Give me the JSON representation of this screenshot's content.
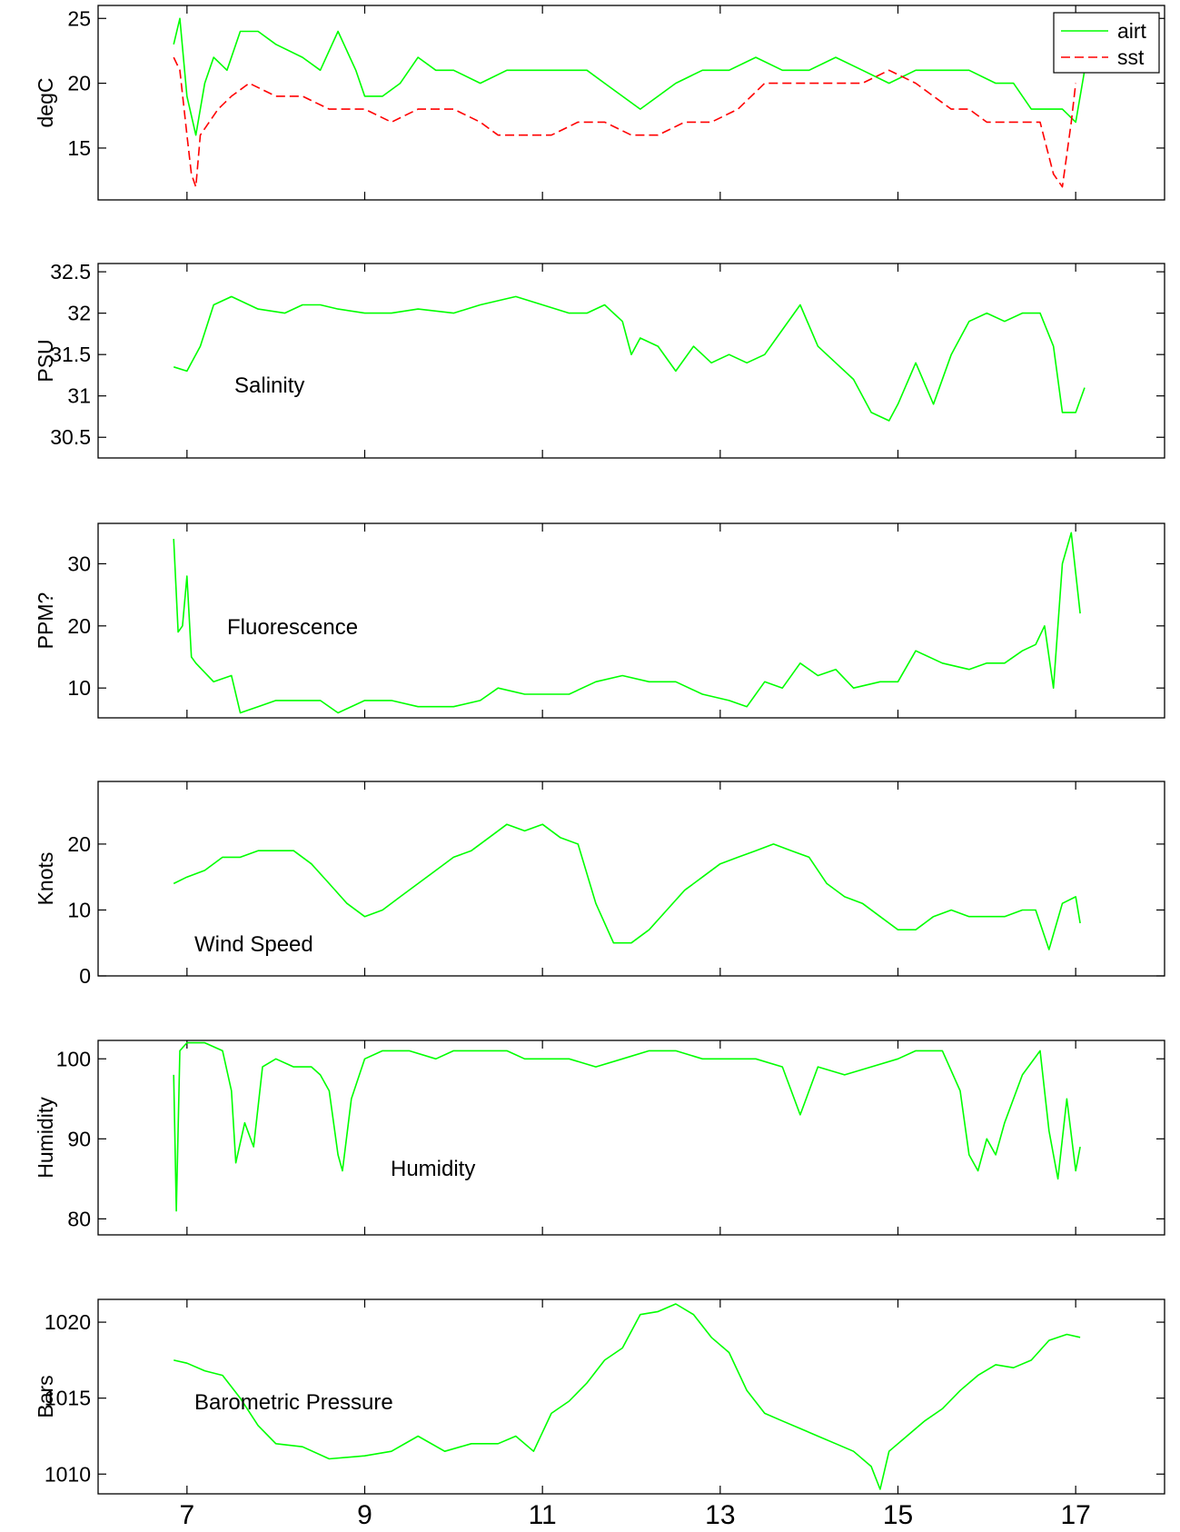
{
  "figure": {
    "x_tick_labels": [
      "7",
      "9",
      "11",
      "13",
      "15",
      "17"
    ]
  },
  "chart_data": [
    {
      "type": "line",
      "ylabel": "degC",
      "xlim": [
        6.0,
        18.0
      ],
      "ylim": [
        11,
        26
      ],
      "yticks": [
        15,
        20,
        25
      ],
      "ytick_labels": [
        "15",
        "20",
        "25"
      ],
      "legend": {
        "position": "top-right",
        "entries": [
          "airt",
          "sst"
        ]
      },
      "series": [
        {
          "name": "airt",
          "color": "#00ff00",
          "style": "solid",
          "x": [
            6.85,
            6.92,
            7.0,
            7.1,
            7.2,
            7.3,
            7.45,
            7.6,
            7.8,
            8.0,
            8.3,
            8.5,
            8.7,
            8.9,
            9.0,
            9.2,
            9.4,
            9.6,
            9.8,
            10.0,
            10.3,
            10.6,
            10.9,
            11.2,
            11.5,
            11.7,
            11.9,
            12.1,
            12.3,
            12.5,
            12.8,
            13.1,
            13.4,
            13.7,
            14.0,
            14.3,
            14.6,
            14.9,
            15.2,
            15.5,
            15.8,
            16.1,
            16.3,
            16.5,
            16.7,
            16.85,
            17.0,
            17.1
          ],
          "y": [
            23,
            25,
            19,
            16,
            20,
            22,
            21,
            24,
            24,
            23,
            22,
            21,
            24,
            21,
            19,
            19,
            20,
            22,
            21,
            21,
            20,
            21,
            21,
            21,
            21,
            20,
            19,
            18,
            19,
            20,
            21,
            21,
            22,
            21,
            21,
            22,
            21,
            20,
            21,
            21,
            21,
            20,
            20,
            18,
            18,
            18,
            17,
            21
          ]
        },
        {
          "name": "sst",
          "color": "#ff0000",
          "style": "dashed",
          "x": [
            6.85,
            6.92,
            7.0,
            7.05,
            7.1,
            7.15,
            7.25,
            7.35,
            7.5,
            7.7,
            8.0,
            8.3,
            8.6,
            9.0,
            9.3,
            9.6,
            10.0,
            10.3,
            10.5,
            10.8,
            11.1,
            11.4,
            11.7,
            12.0,
            12.3,
            12.6,
            12.9,
            13.2,
            13.5,
            13.8,
            14.0,
            14.3,
            14.6,
            14.9,
            15.2,
            15.4,
            15.6,
            15.8,
            16.0,
            16.3,
            16.6,
            16.75,
            16.85,
            16.95,
            17.0
          ],
          "y": [
            22,
            21,
            16,
            13,
            12,
            16,
            17,
            18,
            19,
            20,
            19,
            19,
            18,
            18,
            17,
            18,
            18,
            17,
            16,
            16,
            16,
            17,
            17,
            16,
            16,
            17,
            17,
            18,
            20,
            20,
            20,
            20,
            20,
            21,
            20,
            19,
            18,
            18,
            17,
            17,
            17,
            13,
            12,
            17,
            20
          ]
        }
      ],
      "annotation": ""
    },
    {
      "type": "line",
      "ylabel": "PSU",
      "xlim": [
        6.0,
        18.0
      ],
      "ylim": [
        30.25,
        32.6
      ],
      "yticks": [
        30.5,
        31,
        31.5,
        32,
        32.5
      ],
      "ytick_labels": [
        "30.5",
        "31",
        "31.5",
        "32",
        "32.5"
      ],
      "series": [
        {
          "color": "#00ff00",
          "style": "solid",
          "x": [
            6.85,
            7.0,
            7.15,
            7.3,
            7.5,
            7.8,
            8.1,
            8.3,
            8.5,
            8.7,
            9.0,
            9.3,
            9.6,
            10.0,
            10.3,
            10.7,
            11.0,
            11.3,
            11.5,
            11.7,
            11.9,
            12.0,
            12.1,
            12.3,
            12.5,
            12.7,
            12.9,
            13.1,
            13.3,
            13.5,
            13.7,
            13.9,
            14.1,
            14.3,
            14.5,
            14.7,
            14.9,
            15.0,
            15.2,
            15.4,
            15.6,
            15.8,
            16.0,
            16.2,
            16.4,
            16.6,
            16.75,
            16.85,
            17.0,
            17.1
          ],
          "y": [
            31.35,
            31.3,
            31.6,
            32.1,
            32.2,
            32.05,
            32.0,
            32.1,
            32.1,
            32.05,
            32.0,
            32.0,
            32.05,
            32.0,
            32.1,
            32.2,
            32.1,
            32.0,
            32.0,
            32.1,
            31.9,
            31.5,
            31.7,
            31.6,
            31.3,
            31.6,
            31.4,
            31.5,
            31.4,
            31.5,
            31.8,
            32.1,
            31.6,
            31.4,
            31.2,
            30.8,
            30.7,
            30.9,
            31.4,
            30.9,
            31.5,
            31.9,
            32.0,
            31.9,
            32.0,
            32.0,
            31.6,
            30.8,
            30.8,
            31.1
          ]
        }
      ],
      "annotation": "Salinity"
    },
    {
      "type": "line",
      "ylabel": "PPM?",
      "xlim": [
        6.0,
        18.0
      ],
      "ylim": [
        5.2,
        36.5
      ],
      "yticks": [
        10,
        20,
        30
      ],
      "ytick_labels": [
        "10",
        "20",
        "30"
      ],
      "series": [
        {
          "color": "#00ff00",
          "style": "solid",
          "x": [
            6.85,
            6.9,
            6.95,
            7.0,
            7.05,
            7.1,
            7.3,
            7.5,
            7.6,
            7.8,
            8.0,
            8.3,
            8.5,
            8.7,
            9.0,
            9.3,
            9.6,
            10.0,
            10.3,
            10.5,
            10.8,
            11.0,
            11.3,
            11.6,
            11.9,
            12.2,
            12.5,
            12.8,
            13.1,
            13.3,
            13.5,
            13.7,
            13.9,
            14.1,
            14.3,
            14.5,
            14.8,
            15.0,
            15.2,
            15.5,
            15.8,
            16.0,
            16.2,
            16.4,
            16.55,
            16.65,
            16.75,
            16.85,
            16.95,
            17.05
          ],
          "y": [
            34,
            19,
            20,
            28,
            15,
            14,
            11,
            12,
            6,
            7,
            8,
            8,
            8,
            6,
            8,
            8,
            7,
            7,
            8,
            10,
            9,
            9,
            9,
            11,
            12,
            11,
            11,
            9,
            8,
            7,
            11,
            10,
            14,
            12,
            13,
            10,
            11,
            11,
            16,
            14,
            13,
            14,
            14,
            16,
            17,
            20,
            10,
            30,
            35,
            22
          ]
        }
      ],
      "annotation": "Fluorescence"
    },
    {
      "type": "line",
      "ylabel": "Knots",
      "xlim": [
        6.0,
        18.0
      ],
      "ylim": [
        0,
        29.5
      ],
      "yticks": [
        0,
        10,
        20
      ],
      "ytick_labels": [
        "0",
        "10",
        "20"
      ],
      "series": [
        {
          "color": "#00ff00",
          "style": "solid",
          "x": [
            6.85,
            7.0,
            7.2,
            7.4,
            7.6,
            7.8,
            8.0,
            8.2,
            8.4,
            8.6,
            8.8,
            9.0,
            9.2,
            9.4,
            9.6,
            9.8,
            10.0,
            10.2,
            10.4,
            10.6,
            10.8,
            11.0,
            11.2,
            11.4,
            11.6,
            11.8,
            12.0,
            12.2,
            12.4,
            12.6,
            12.8,
            13.0,
            13.2,
            13.4,
            13.6,
            13.8,
            14.0,
            14.2,
            14.4,
            14.6,
            14.8,
            15.0,
            15.2,
            15.4,
            15.6,
            15.8,
            16.0,
            16.2,
            16.4,
            16.55,
            16.7,
            16.85,
            17.0,
            17.05
          ],
          "y": [
            14,
            15,
            16,
            18,
            18,
            19,
            19,
            19,
            17,
            14,
            11,
            9,
            10,
            12,
            14,
            16,
            18,
            19,
            21,
            23,
            22,
            23,
            21,
            20,
            11,
            5,
            5,
            7,
            10,
            13,
            15,
            17,
            18,
            19,
            20,
            19,
            18,
            14,
            12,
            11,
            9,
            7,
            7,
            9,
            10,
            9,
            9,
            9,
            10,
            10,
            4,
            11,
            12,
            8
          ]
        }
      ],
      "annotation": "Wind Speed"
    },
    {
      "type": "line",
      "ylabel": "Humidity",
      "xlim": [
        6.0,
        18.0
      ],
      "ylim": [
        78,
        102.3
      ],
      "yticks": [
        80,
        90,
        100
      ],
      "ytick_labels": [
        "80",
        "90",
        "100"
      ],
      "series": [
        {
          "color": "#00ff00",
          "style": "solid",
          "x": [
            6.85,
            6.88,
            6.92,
            7.0,
            7.2,
            7.4,
            7.5,
            7.55,
            7.65,
            7.75,
            7.85,
            8.0,
            8.2,
            8.4,
            8.5,
            8.6,
            8.7,
            8.75,
            8.85,
            9.0,
            9.2,
            9.5,
            9.8,
            10.0,
            10.3,
            10.6,
            10.8,
            11.0,
            11.3,
            11.6,
            11.9,
            12.2,
            12.5,
            12.8,
            13.1,
            13.4,
            13.7,
            13.9,
            14.1,
            14.4,
            14.7,
            15.0,
            15.2,
            15.5,
            15.7,
            15.8,
            15.9,
            16.0,
            16.1,
            16.2,
            16.4,
            16.6,
            16.7,
            16.8,
            16.9,
            17.0,
            17.05
          ],
          "y": [
            98,
            81,
            101,
            102,
            102,
            101,
            96,
            87,
            92,
            89,
            99,
            100,
            99,
            99,
            98,
            96,
            88,
            86,
            95,
            100,
            101,
            101,
            100,
            101,
            101,
            101,
            100,
            100,
            100,
            99,
            100,
            101,
            101,
            100,
            100,
            100,
            99,
            93,
            99,
            98,
            99,
            100,
            101,
            101,
            96,
            88,
            86,
            90,
            88,
            92,
            98,
            101,
            91,
            85,
            95,
            86,
            89
          ]
        }
      ],
      "annotation": "Humidity"
    },
    {
      "type": "line",
      "ylabel": "Bars",
      "xlim": [
        6.0,
        18.0
      ],
      "ylim": [
        1008.7,
        1021.5
      ],
      "yticks": [
        1010,
        1015,
        1020
      ],
      "ytick_labels": [
        "1010",
        "1015",
        "1020"
      ],
      "series": [
        {
          "color": "#00ff00",
          "style": "solid",
          "x": [
            6.85,
            7.0,
            7.2,
            7.4,
            7.6,
            7.8,
            8.0,
            8.3,
            8.6,
            9.0,
            9.3,
            9.6,
            9.9,
            10.2,
            10.5,
            10.7,
            10.9,
            11.1,
            11.3,
            11.5,
            11.7,
            11.9,
            12.1,
            12.3,
            12.5,
            12.7,
            12.9,
            13.1,
            13.3,
            13.5,
            13.7,
            13.9,
            14.1,
            14.3,
            14.5,
            14.7,
            14.8,
            14.9,
            15.1,
            15.3,
            15.5,
            15.7,
            15.9,
            16.1,
            16.3,
            16.5,
            16.7,
            16.9,
            17.05
          ],
          "y": [
            1017.5,
            1017.3,
            1016.8,
            1016.5,
            1015.0,
            1013.2,
            1012.0,
            1011.8,
            1011.0,
            1011.2,
            1011.5,
            1012.5,
            1011.5,
            1012.0,
            1012.0,
            1012.5,
            1011.5,
            1014.0,
            1014.8,
            1016.0,
            1017.5,
            1018.3,
            1020.5,
            1020.7,
            1021.2,
            1020.5,
            1019.0,
            1018.0,
            1015.5,
            1014.0,
            1013.5,
            1013.0,
            1012.5,
            1012.0,
            1011.5,
            1010.5,
            1009.0,
            1011.5,
            1012.5,
            1013.5,
            1014.3,
            1015.5,
            1016.5,
            1017.2,
            1017.0,
            1017.5,
            1018.8,
            1019.2,
            1019.0
          ]
        }
      ],
      "annotation": "Barometric Pressure"
    }
  ]
}
